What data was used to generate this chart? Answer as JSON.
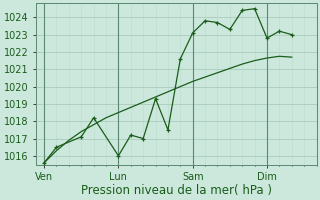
{
  "bg_color": "#cce8dc",
  "grid_major_color": "#aaccbb",
  "grid_minor_color": "#bbddd0",
  "line_color": "#1a5c1a",
  "xlabel": "Pression niveau de la mer( hPa )",
  "ylim": [
    1015.5,
    1024.8
  ],
  "yticks": [
    1016,
    1017,
    1018,
    1019,
    1020,
    1021,
    1022,
    1023,
    1024
  ],
  "xtick_labels": [
    "Ven",
    "Lun",
    "Sam",
    "Dim"
  ],
  "xtick_positions": [
    0,
    36,
    72,
    108
  ],
  "xlim": [
    -4,
    132
  ],
  "vline_positions": [
    0,
    36,
    72,
    108
  ],
  "series1_x": [
    0,
    6,
    18,
    24,
    36,
    42,
    48,
    54,
    60,
    66,
    72,
    78,
    84,
    90,
    96,
    102,
    108,
    114,
    120
  ],
  "series1_y": [
    1015.6,
    1016.5,
    1017.1,
    1018.2,
    1016.0,
    1017.2,
    1017.0,
    1019.3,
    1017.5,
    1021.6,
    1023.1,
    1023.8,
    1023.7,
    1023.3,
    1024.4,
    1024.5,
    1022.8,
    1023.2,
    1023.0
  ],
  "series2_x": [
    0,
    6,
    12,
    18,
    24,
    30,
    36,
    42,
    48,
    54,
    60,
    66,
    72,
    78,
    84,
    90,
    96,
    102,
    108,
    114,
    120
  ],
  "series2_y": [
    1015.6,
    1016.3,
    1016.9,
    1017.4,
    1017.8,
    1018.2,
    1018.5,
    1018.8,
    1019.1,
    1019.4,
    1019.7,
    1020.0,
    1020.3,
    1020.55,
    1020.8,
    1021.05,
    1021.3,
    1021.5,
    1021.65,
    1021.75,
    1021.7
  ],
  "xlabel_fontsize": 8.5,
  "tick_fontsize": 7,
  "minor_x_spacing": 6
}
